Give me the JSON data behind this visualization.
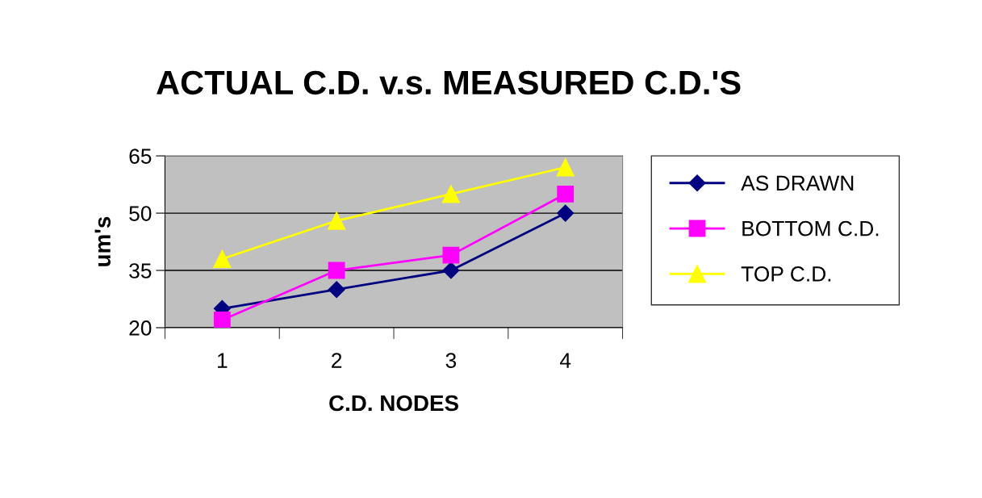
{
  "chart_data": {
    "type": "line",
    "title": "ACTUAL C.D. v.s. MEASURED C.D.'S",
    "xlabel": "C.D. NODES",
    "ylabel": "um's",
    "categories": [
      "1",
      "2",
      "3",
      "4"
    ],
    "series": [
      {
        "name": "AS DRAWN",
        "color": "#000080",
        "marker": "diamond",
        "values": [
          25,
          30,
          35,
          50
        ]
      },
      {
        "name": "BOTTOM C.D.",
        "color": "#ff00ff",
        "marker": "square",
        "values": [
          22,
          35,
          39,
          55
        ]
      },
      {
        "name": "TOP C.D.",
        "color": "#ffff00",
        "marker": "triangle",
        "values": [
          38,
          48,
          55,
          62
        ]
      }
    ],
    "ylim": [
      20,
      65
    ],
    "yticks": [
      20,
      35,
      50,
      65
    ],
    "grid": "y",
    "legend": "right"
  }
}
